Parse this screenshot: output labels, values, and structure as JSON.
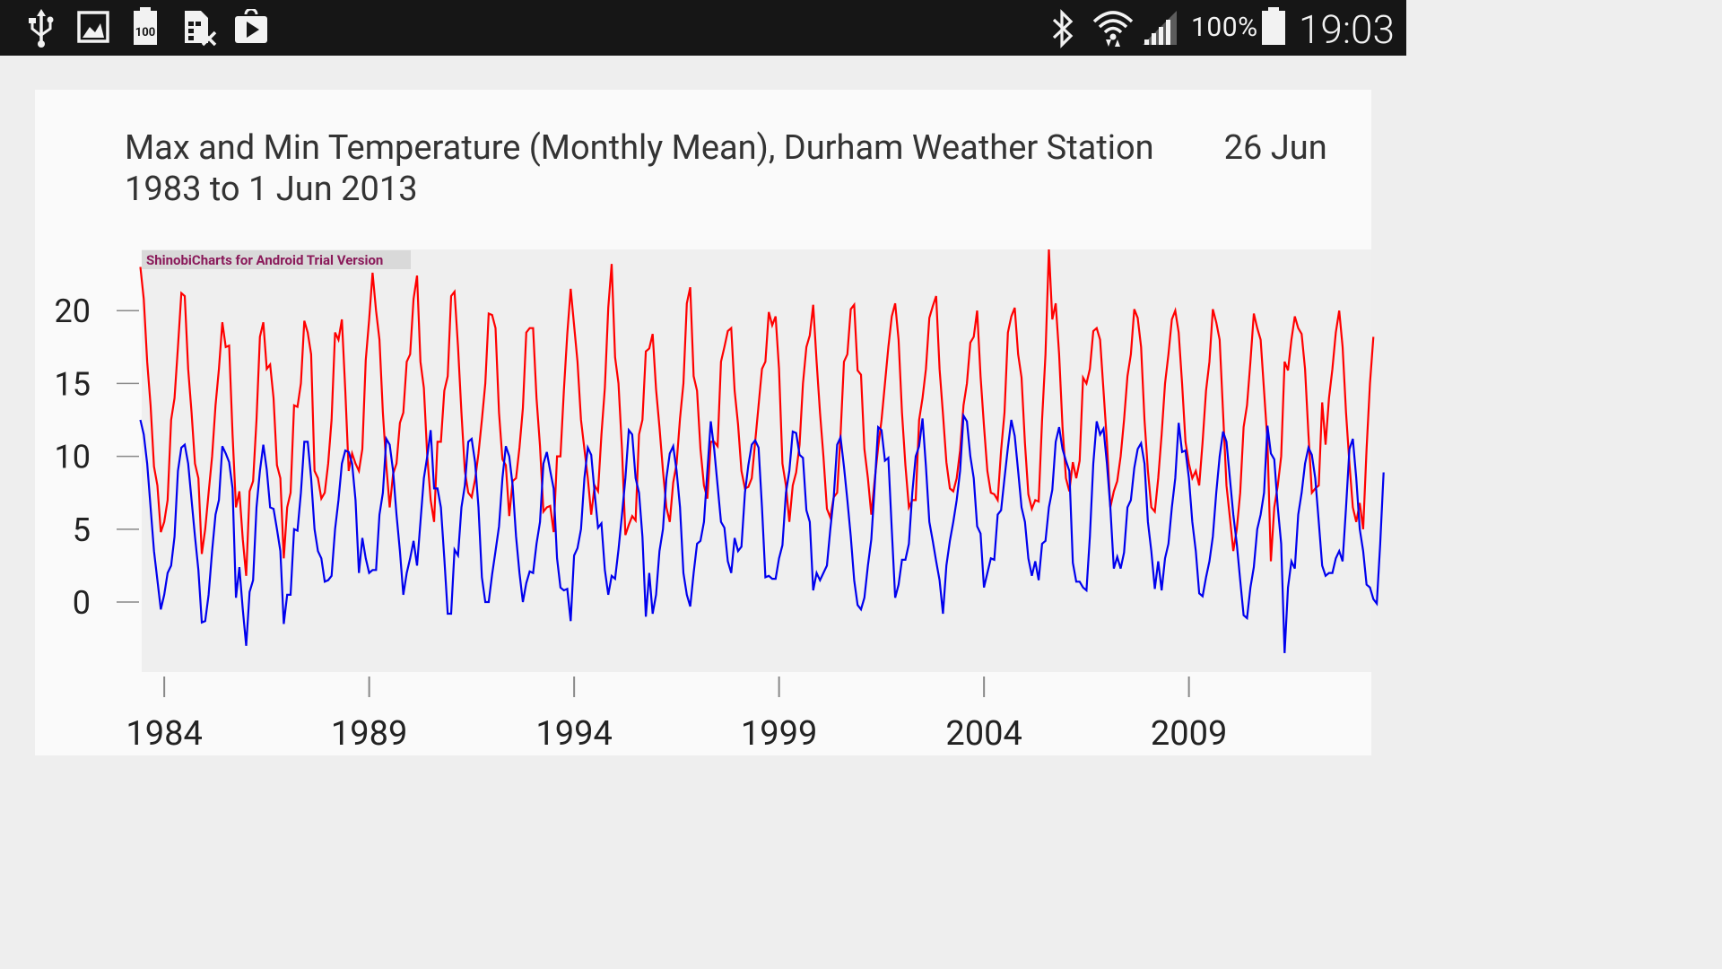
{
  "status_bar": {
    "left_icons": [
      "usb-icon",
      "image-icon",
      "battery-100-notification-icon",
      "sim-removed-icon",
      "play-store-icon"
    ],
    "right_icons": [
      "bluetooth-icon",
      "wifi-icon",
      "signal-icon",
      "battery-icon"
    ],
    "battery_percent": "100%",
    "time": "19:03"
  },
  "chart_title": {
    "part1": "Max and Min Temperature (Monthly Mean), Durham Weather Station",
    "part2": "26 Jun 1983 to 1 Jun 2013"
  },
  "watermark": "ShinobiCharts for Android Trial Version",
  "colors": {
    "max_series": "#ff0000",
    "min_series": "#0000ee",
    "plot_background": "#efefef",
    "card_background": "#fafafa",
    "status_bar": "#161616"
  },
  "chart_data": {
    "type": "line",
    "title": "Max and Min Temperature (Monthly Mean), Durham Weather Station 26 Jun 1983 to 1 Jun 2013",
    "xlabel": "",
    "ylabel": "",
    "x_start": "1983-06",
    "x_step": "1 month",
    "x_end": "2013-06",
    "xlim": [
      1983.45,
      2013.45
    ],
    "ylim": [
      -4.8,
      24.2
    ],
    "x_ticks": [
      1984,
      1989,
      1994,
      1999,
      2004,
      2009
    ],
    "y_ticks": [
      0,
      5,
      10,
      15,
      20
    ],
    "grid": false,
    "series": [
      {
        "values": [
          23.0,
          20.8,
          16.5,
          13.5,
          9.3,
          8.0,
          4.8,
          5.5,
          7.0,
          12.5,
          14.0,
          17.5,
          21.2,
          21.0,
          16.0,
          13.0,
          9.5,
          8.5,
          3.3,
          5.0,
          7.5,
          10.0,
          13.5,
          16.0,
          19.2,
          17.5,
          17.6,
          11.5,
          6.5,
          7.6,
          4.3,
          1.8,
          7.6,
          8.3,
          12.5,
          18.2,
          19.2,
          16.0,
          16.3,
          14.0,
          9.4,
          8.5,
          3.0,
          6.5,
          7.5,
          13.5,
          13.4,
          15.0,
          19.3,
          18.5,
          17.0,
          9.0,
          8.5,
          7.1,
          7.5,
          9.5,
          12.5,
          18.5,
          18.0,
          19.4,
          14.5,
          9.0,
          10.2,
          9.5,
          9.0,
          10.5,
          16.6,
          19.4,
          22.6,
          20.0,
          18.0,
          13.0,
          9.4,
          6.5,
          8.8,
          9.5,
          12.3,
          13.0,
          16.5,
          17.0,
          20.8,
          22.4,
          16.5,
          14.7,
          10.0,
          7.0,
          5.5,
          11.0,
          11.0,
          14.5,
          15.5,
          21.0,
          21.3,
          17.5,
          13.0,
          9.0,
          7.5,
          7.2,
          8.4,
          10.2,
          12.5,
          15.0,
          19.8,
          19.7,
          18.8,
          13.0,
          9.8,
          9.4,
          5.9,
          8.3,
          8.5,
          10.6,
          13.3,
          18.5,
          18.8,
          18.8,
          14.0,
          10.7,
          6.2,
          6.5,
          6.6,
          4.8,
          10.0,
          10.0,
          14.5,
          18.4,
          21.5,
          19.0,
          16.5,
          12.5,
          10.5,
          8.5,
          6.0,
          8.0,
          7.6,
          11.5,
          14.7,
          20.2,
          23.2,
          16.8,
          15.0,
          10.5,
          4.6,
          5.3,
          5.9,
          5.6,
          11.5,
          12.5,
          17.2,
          17.4,
          18.4,
          14.6,
          12.0,
          9.0,
          6.5,
          5.5,
          8.2,
          9.5,
          12.6,
          15.0,
          20.5,
          21.6,
          15.5,
          14.5,
          10.5,
          8.0,
          7.1,
          11.0,
          11.0,
          10.7,
          16.5,
          17.5,
          18.6,
          18.8,
          14.5,
          12.2,
          9.0,
          7.8,
          7.9,
          8.5,
          11.0,
          13.5,
          16.0,
          16.5,
          19.9,
          19.0,
          19.6,
          16.0,
          9.5,
          8.0,
          5.5,
          8.0,
          8.9,
          10.8,
          15.0,
          17.5,
          18.3,
          20.4,
          16.5,
          13.0,
          10.0,
          6.4,
          5.8,
          7.2,
          7.5,
          11.5,
          16.5,
          17.0,
          20.1,
          20.4,
          15.9,
          15.6,
          10.5,
          8.5,
          6.0,
          8.4,
          10.6,
          12.5,
          15.0,
          17.5,
          19.6,
          20.5,
          18.0,
          13.0,
          9.4,
          6.5,
          7.0,
          7.0,
          12.5,
          14.0,
          16.0,
          19.5,
          20.3,
          21.0,
          16.0,
          12.9,
          9.6,
          7.8,
          7.6,
          8.5,
          10.4,
          13.5,
          15.0,
          17.8,
          18.2,
          20.0,
          15.5,
          12.1,
          9.0,
          7.5,
          7.4,
          7.0,
          10.4,
          13.0,
          18.5,
          19.6,
          20.2,
          17.0,
          15.4,
          10.9,
          7.4,
          6.4,
          7.0,
          6.9,
          12.5,
          17.0,
          24.2,
          19.4,
          20.5,
          17.0,
          12.0,
          8.5,
          7.6,
          9.6,
          8.5,
          9.7,
          15.4,
          15.0,
          16.0,
          18.6,
          18.8,
          18.0,
          14.5,
          11.0,
          6.5,
          7.6,
          8.3,
          10.0,
          12.5,
          15.5,
          17.0,
          20.1,
          19.5,
          17.5,
          12.5,
          9.0,
          6.5,
          6.2,
          8.5,
          11.5,
          15.0,
          17.0,
          19.4,
          20.0,
          18.5,
          15.0,
          11.0,
          9.5,
          8.5,
          9.0,
          8.0,
          11.0,
          14.5,
          16.5,
          20.1,
          19.2,
          18.0,
          13.0,
          8.0,
          5.8,
          3.5,
          5.0,
          7.5,
          12.0,
          13.5,
          16.5,
          19.8,
          18.8,
          18.0,
          14.5,
          11.0,
          2.8,
          6.5,
          8.0,
          10.0,
          16.5,
          15.9,
          18.0,
          19.6,
          18.8,
          18.4,
          16.0,
          11.5,
          7.5,
          7.8,
          8.0,
          13.7,
          10.8,
          14.0,
          16.0,
          18.5,
          20.0,
          17.5,
          13.0,
          9.5,
          6.5,
          5.5,
          6.8,
          5.0,
          10.5,
          15.0,
          18.2
        ]
      },
      {
        "values": [
          12.5,
          11.5,
          9.5,
          6.5,
          3.5,
          1.5,
          -0.5,
          0.5,
          2.0,
          2.5,
          4.5,
          9.0,
          10.6,
          10.8,
          9.5,
          7.0,
          4.5,
          2.2,
          -1.4,
          -1.3,
          0.5,
          3.5,
          6.0,
          7.0,
          10.7,
          10.2,
          9.6,
          7.8,
          0.3,
          2.4,
          -0.5,
          -3.0,
          0.7,
          1.5,
          6.5,
          9.0,
          10.8,
          9.1,
          6.5,
          6.4,
          5.0,
          3.5,
          -1.5,
          0.5,
          0.5,
          5.0,
          4.9,
          7.5,
          11.0,
          11.0,
          8.5,
          5.0,
          3.5,
          3.0,
          1.4,
          1.5,
          1.8,
          5.0,
          7.0,
          9.5,
          10.4,
          10.3,
          9.5,
          7.0,
          2.0,
          4.4,
          3.0,
          2.0,
          2.2,
          2.2,
          6.0,
          7.5,
          11.2,
          10.8,
          9.0,
          6.0,
          3.5,
          0.5,
          2.0,
          3.0,
          4.2,
          2.5,
          5.5,
          8.5,
          10.0,
          11.8,
          7.8,
          7.8,
          6.5,
          3.0,
          -0.8,
          -0.8,
          3.6,
          3.2,
          6.5,
          8.0,
          11.0,
          11.2,
          9.6,
          6.5,
          1.7,
          0.0,
          0.0,
          1.9,
          3.5,
          5.2,
          8.5,
          10.7,
          10.0,
          8.0,
          4.5,
          2.0,
          0.0,
          1.3,
          2.1,
          2.0,
          4.0,
          5.5,
          9.5,
          10.3,
          9.0,
          7.8,
          3.0,
          1.0,
          0.8,
          0.9,
          -1.3,
          3.2,
          3.7,
          5.0,
          8.5,
          10.6,
          10.1,
          7.5,
          5.1,
          5.4,
          2.2,
          0.5,
          1.8,
          1.6,
          3.6,
          6.0,
          8.5,
          11.8,
          11.5,
          8.5,
          7.5,
          4.5,
          -1.0,
          2.0,
          -0.8,
          0.5,
          3.5,
          5.0,
          8.5,
          10.2,
          10.7,
          9.0,
          6.5,
          2.0,
          0.5,
          -0.3,
          2.0,
          4.0,
          4.2,
          5.5,
          9.0,
          12.4,
          10.5,
          8.0,
          5.5,
          5.1,
          2.8,
          2.0,
          4.4,
          3.5,
          3.8,
          7.5,
          9.4,
          10.8,
          11.1,
          10.6,
          6.5,
          1.7,
          1.8,
          1.6,
          1.6,
          3.0,
          3.9,
          7.5,
          9.0,
          11.7,
          11.6,
          10.1,
          9.9,
          6.3,
          5.5,
          0.8,
          2.0,
          1.5,
          2.0,
          2.5,
          5.0,
          7.2,
          10.8,
          11.3,
          9.3,
          7.0,
          4.5,
          1.5,
          -0.2,
          -0.5,
          0.3,
          2.5,
          4.3,
          8.0,
          12.0,
          11.8,
          9.7,
          9.9,
          5.0,
          0.3,
          1.2,
          2.9,
          2.9,
          4.0,
          7.5,
          10.0,
          10.7,
          12.6,
          9.3,
          5.5,
          4.2,
          2.8,
          1.5,
          -0.8,
          2.5,
          4.2,
          5.5,
          7.0,
          9.0,
          12.8,
          12.4,
          10.0,
          8.5,
          5.2,
          4.7,
          1.0,
          2.0,
          3.0,
          2.9,
          6.0,
          6.3,
          8.5,
          10.6,
          12.5,
          11.4,
          9.0,
          6.5,
          5.5,
          3.0,
          1.8,
          2.8,
          1.5,
          4.0,
          4.2,
          6.5,
          7.7,
          11.0,
          12.0,
          10.5,
          9.7,
          9.0,
          2.7,
          1.4,
          1.4,
          1.0,
          0.8,
          4.5,
          9.5,
          12.4,
          11.5,
          11.9,
          9.5,
          6.5,
          2.3,
          3.1,
          2.3,
          3.4,
          6.5,
          7.0,
          9.2,
          10.5,
          10.9,
          9.5,
          5.5,
          3.5,
          0.9,
          2.8,
          0.8,
          3.0,
          4.0,
          6.5,
          8.5,
          12.3,
          10.3,
          10.4,
          8.5,
          5.5,
          3.5,
          0.6,
          0.4,
          1.7,
          2.8,
          4.5,
          7.5,
          10.0,
          11.7,
          11.0,
          8.5,
          6.0,
          4.0,
          1.5,
          -0.9,
          -1.1,
          1.0,
          2.4,
          5.0,
          6.0,
          7.5,
          12.1,
          10.2,
          9.8,
          6.5,
          4.0,
          -3.5,
          1.0,
          2.8,
          2.3,
          6.0,
          7.5,
          9.5,
          10.6,
          10.1,
          8.5,
          5.5,
          2.5,
          1.8,
          2.0,
          2.0,
          3.0,
          3.5,
          2.8,
          6.5,
          10.5,
          11.2,
          8.5,
          5.0,
          3.5,
          1.2,
          1.0,
          0.2,
          -0.1,
          4.0,
          8.9
        ]
      }
    ]
  }
}
